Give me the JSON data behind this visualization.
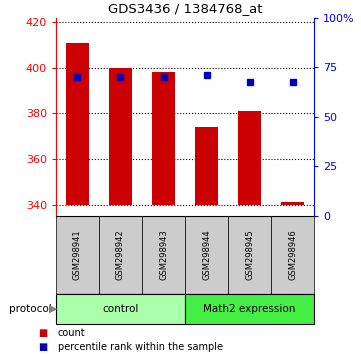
{
  "title": "GDS3436 / 1384768_at",
  "categories": [
    "GSM298941",
    "GSM298942",
    "GSM298943",
    "GSM298944",
    "GSM298945",
    "GSM298946"
  ],
  "bar_values": [
    411,
    400,
    398,
    374,
    381,
    341
  ],
  "bar_bottom": 340,
  "percentile_values": [
    396,
    396,
    396,
    397,
    394,
    394
  ],
  "ylim_left": [
    335,
    422
  ],
  "yticks_left": [
    340,
    360,
    380,
    400,
    420
  ],
  "yticks_right": [
    0,
    25,
    50,
    75,
    100
  ],
  "ytick_right_labels": [
    "0",
    "25",
    "50",
    "75",
    "100%"
  ],
  "bar_color": "#cc0000",
  "marker_color": "#0000bb",
  "bar_width": 0.55,
  "control_color": "#aaffaa",
  "math2_color": "#44ee44",
  "label_box_color": "#cccccc",
  "legend_items": [
    {
      "label": "count",
      "color": "#cc0000"
    },
    {
      "label": "percentile rank within the sample",
      "color": "#0000bb"
    }
  ]
}
